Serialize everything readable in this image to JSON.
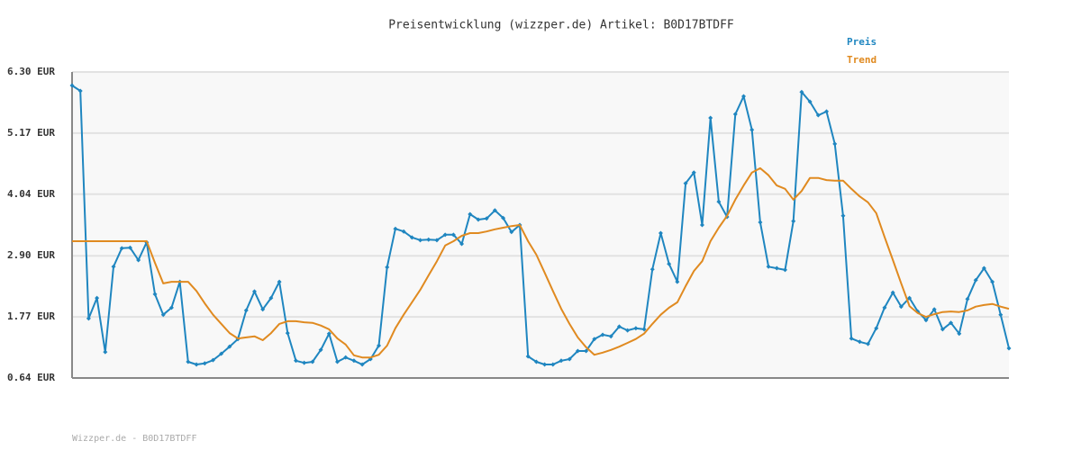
{
  "chart_data": {
    "type": "line",
    "title": "Preisentwicklung (wizzper.de) Artikel: B0D17BTDFF",
    "footer": "Wizzper.de - B0D17BTDFF",
    "ylim": [
      0.64,
      6.3
    ],
    "yticks": [
      {
        "value": 0.64,
        "label": "0.64 EUR"
      },
      {
        "value": 1.77,
        "label": "1.77 EUR"
      },
      {
        "value": 2.9,
        "label": "2.90 EUR"
      },
      {
        "value": 4.04,
        "label": "4.04 EUR"
      },
      {
        "value": 5.17,
        "label": "5.17 EUR"
      },
      {
        "value": 6.3,
        "label": "6.30 EUR"
      }
    ],
    "grid": true,
    "legend": "top-right",
    "series": [
      {
        "name": "Preis",
        "color": "#1f86c0",
        "markers": true,
        "values": [
          6.05,
          5.95,
          1.74,
          2.12,
          1.12,
          2.7,
          3.04,
          3.05,
          2.82,
          3.15,
          2.19,
          1.81,
          1.94,
          2.42,
          0.94,
          0.89,
          0.91,
          0.97,
          1.09,
          1.22,
          1.36,
          1.89,
          2.24,
          1.91,
          2.12,
          2.42,
          1.47,
          0.96,
          0.92,
          0.94,
          1.16,
          1.46,
          0.94,
          1.02,
          0.96,
          0.89,
          0.99,
          1.24,
          2.69,
          3.4,
          3.35,
          3.24,
          3.19,
          3.2,
          3.19,
          3.29,
          3.29,
          3.12,
          3.67,
          3.57,
          3.59,
          3.74,
          3.6,
          3.34,
          3.47,
          1.04,
          0.94,
          0.89,
          0.89,
          0.96,
          0.99,
          1.14,
          1.14,
          1.36,
          1.44,
          1.41,
          1.59,
          1.52,
          1.56,
          1.54,
          2.65,
          3.32,
          2.75,
          2.42,
          4.24,
          4.44,
          3.47,
          5.45,
          3.9,
          3.62,
          5.52,
          5.85,
          5.23,
          3.52,
          2.7,
          2.67,
          2.64,
          3.54,
          5.93,
          5.75,
          5.5,
          5.57,
          4.97,
          3.64,
          1.37,
          1.31,
          1.27,
          1.56,
          1.94,
          2.22,
          1.96,
          2.12,
          1.87,
          1.71,
          1.91,
          1.54,
          1.66,
          1.46,
          2.1,
          2.45,
          2.67,
          2.42,
          1.81,
          1.19
        ]
      },
      {
        "name": "Trend",
        "color": "#e08a20",
        "markers": false,
        "values": [
          3.17,
          3.17,
          3.17,
          3.17,
          3.17,
          3.17,
          3.17,
          3.17,
          3.17,
          3.17,
          2.77,
          2.39,
          2.42,
          2.42,
          2.42,
          2.25,
          2.02,
          1.81,
          1.64,
          1.47,
          1.37,
          1.39,
          1.41,
          1.34,
          1.47,
          1.64,
          1.69,
          1.69,
          1.67,
          1.66,
          1.61,
          1.54,
          1.37,
          1.26,
          1.06,
          1.02,
          1.02,
          1.07,
          1.24,
          1.56,
          1.81,
          2.04,
          2.27,
          2.54,
          2.8,
          3.09,
          3.17,
          3.27,
          3.32,
          3.32,
          3.35,
          3.39,
          3.42,
          3.45,
          3.47,
          3.17,
          2.92,
          2.59,
          2.25,
          1.92,
          1.64,
          1.39,
          1.21,
          1.07,
          1.11,
          1.16,
          1.22,
          1.29,
          1.36,
          1.46,
          1.64,
          1.81,
          1.94,
          2.04,
          2.34,
          2.62,
          2.8,
          3.17,
          3.42,
          3.64,
          3.94,
          4.2,
          4.44,
          4.52,
          4.39,
          4.2,
          4.14,
          3.94,
          4.1,
          4.34,
          4.34,
          4.3,
          4.29,
          4.29,
          4.14,
          4.0,
          3.89,
          3.69,
          3.25,
          2.82,
          2.39,
          1.97,
          1.84,
          1.77,
          1.82,
          1.86,
          1.87,
          1.86,
          1.89,
          1.96,
          1.99,
          2.01,
          1.96,
          1.92
        ]
      }
    ]
  }
}
